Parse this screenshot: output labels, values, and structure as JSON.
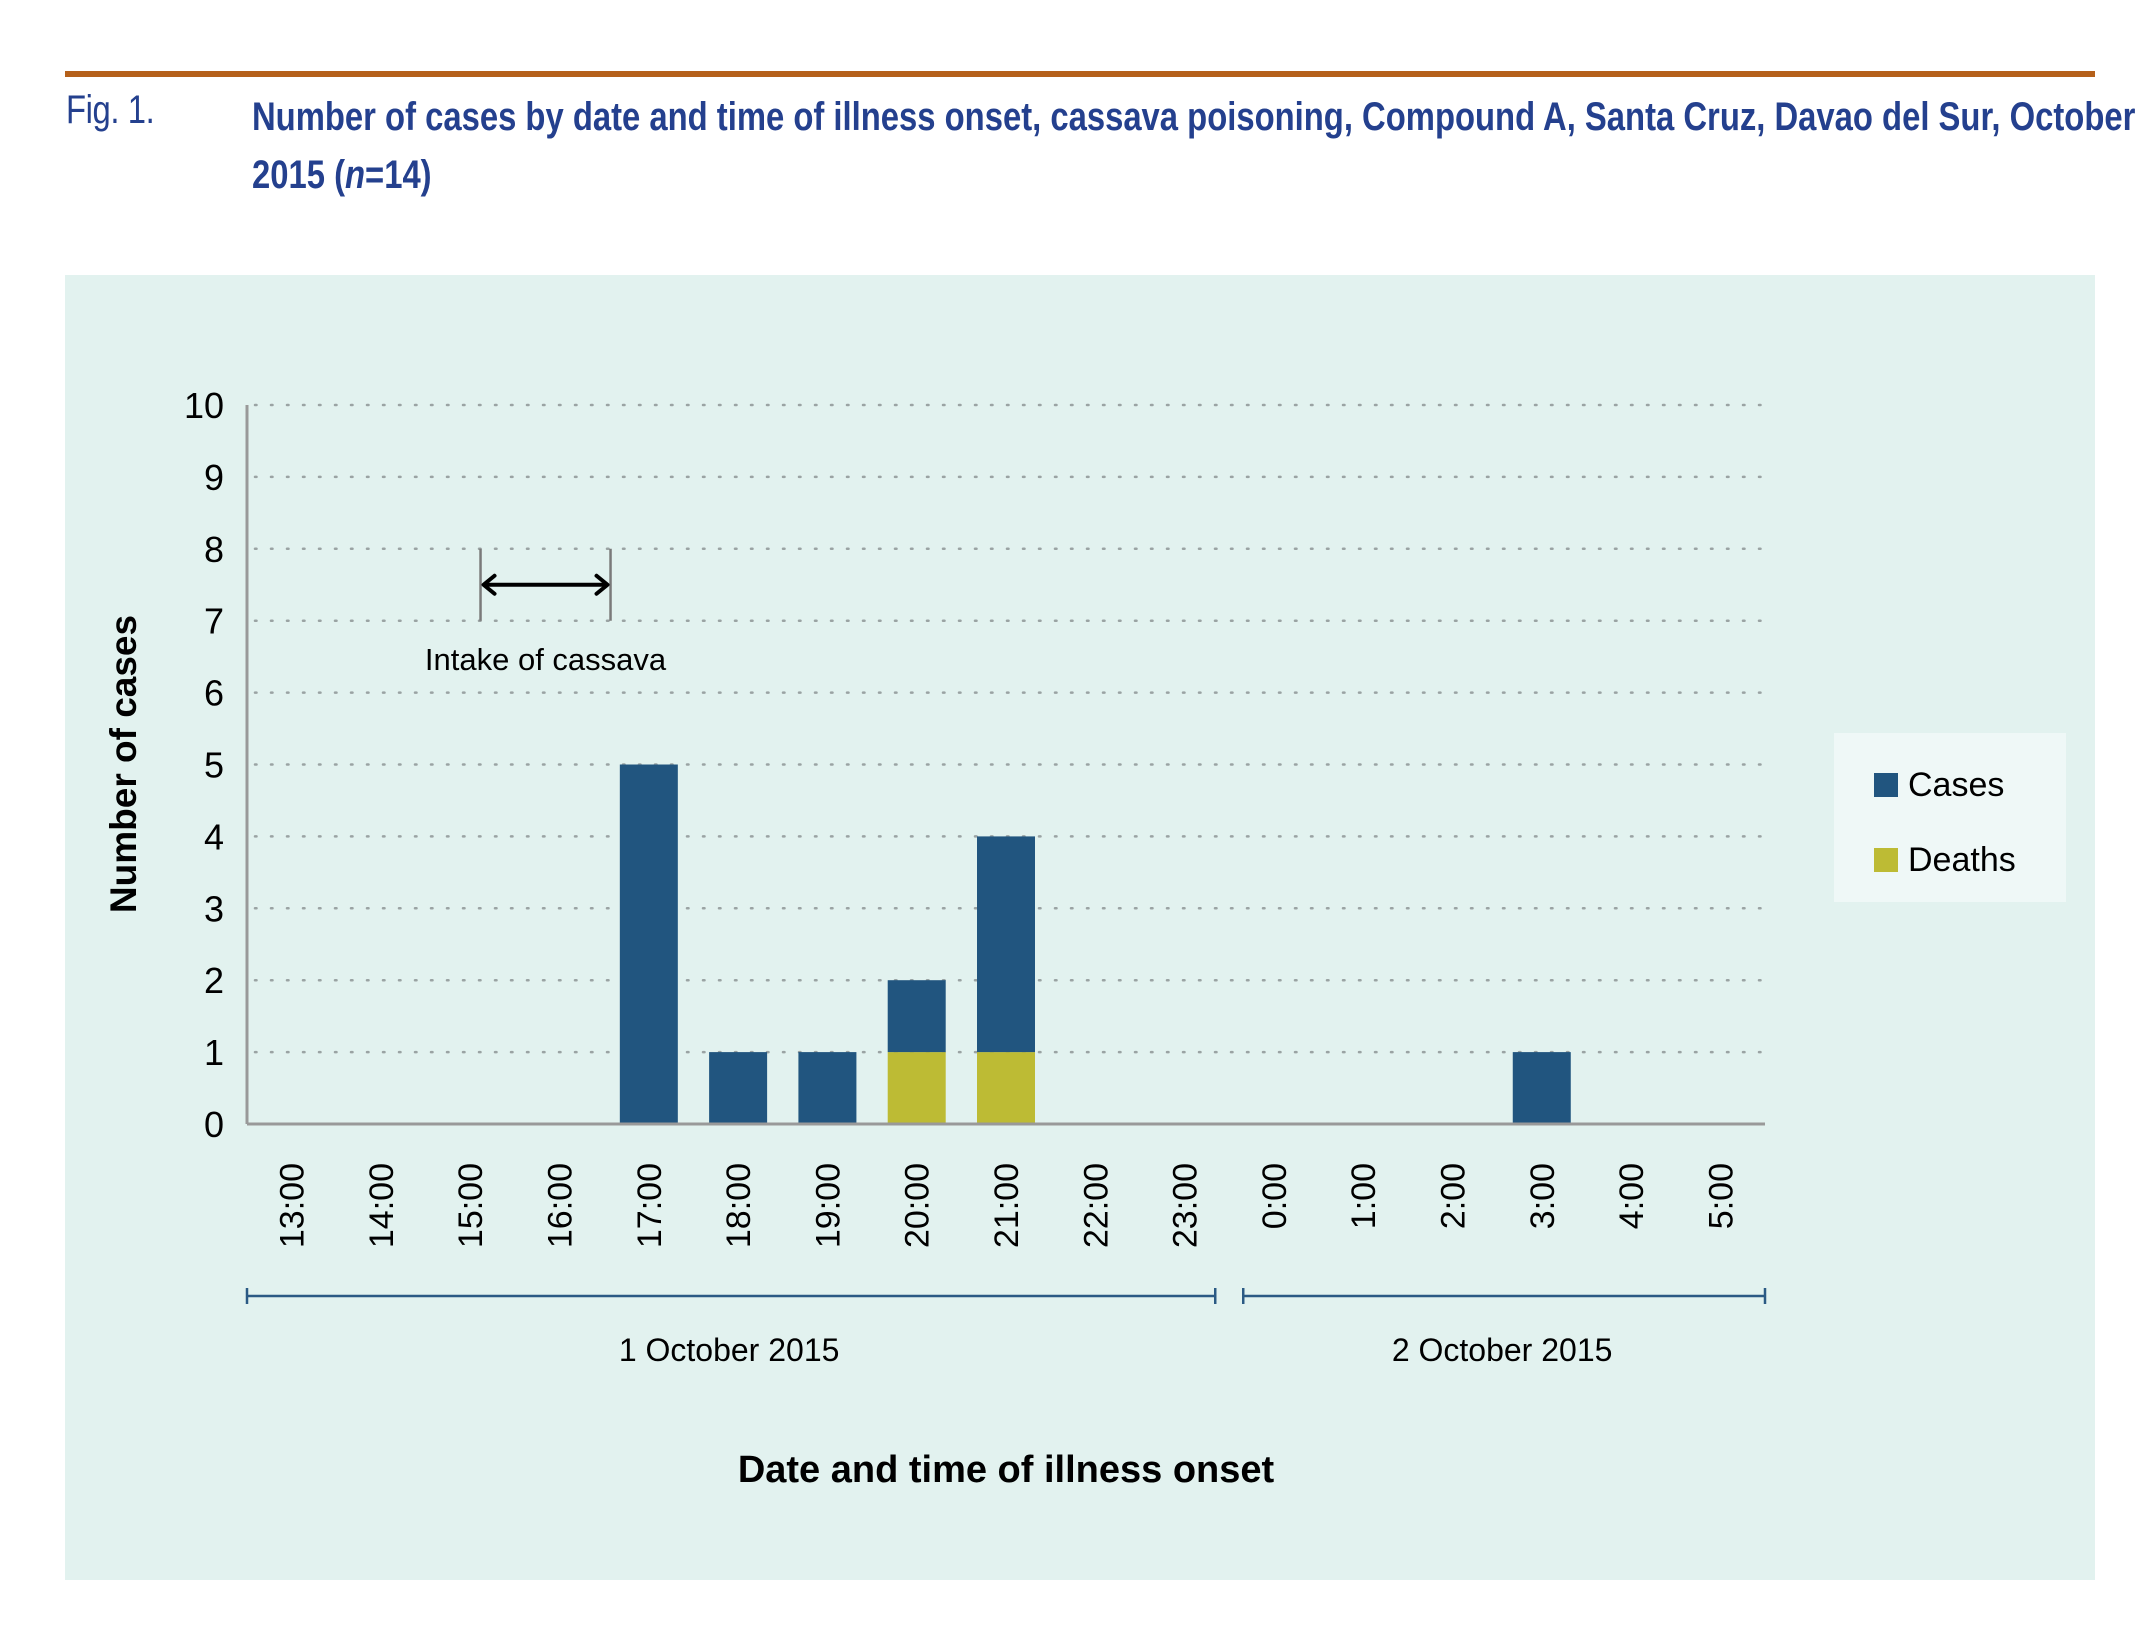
{
  "figure": {
    "label": "Fig. 1.",
    "title_main": "Number of cases by date and time of illness onset, cassava poisoning, Compound A, Santa Cruz, Davao del Sur, October 2015 (",
    "title_n_var": "n",
    "title_n_rest": "=14)",
    "accent_color": "#b5601a",
    "title_color": "#24408e",
    "panel_color": "#e2f2ef"
  },
  "chart_data": {
    "type": "bar",
    "stacked": true,
    "title": "Number of cases by date and time of illness onset, cassava poisoning, Compound A, Santa Cruz, Davao del Sur, October 2015 (n=14)",
    "xlabel": "Date and time of illness onset",
    "ylabel": "Number of cases",
    "ylim": [
      0,
      10
    ],
    "yticks": [
      0,
      1,
      2,
      3,
      4,
      5,
      6,
      7,
      8,
      9,
      10
    ],
    "grid": "horizontal dotted",
    "categories": [
      "13:00",
      "14:00",
      "15:00",
      "16:00",
      "17:00",
      "18:00",
      "19:00",
      "20:00",
      "21:00",
      "22:00",
      "23:00",
      "0:00",
      "1:00",
      "2:00",
      "3:00",
      "4:00",
      "5:00"
    ],
    "series": [
      {
        "name": "Deaths",
        "color": "#bdbb34",
        "values": [
          0,
          0,
          0,
          0,
          0,
          0,
          0,
          1,
          1,
          0,
          0,
          0,
          0,
          0,
          0,
          0,
          0
        ]
      },
      {
        "name": "Cases",
        "color": "#21557f",
        "values": [
          0,
          0,
          0,
          0,
          5,
          1,
          1,
          1,
          3,
          0,
          0,
          0,
          0,
          0,
          1,
          0,
          0
        ]
      }
    ],
    "totals": [
      0,
      0,
      0,
      0,
      5,
      1,
      1,
      2,
      4,
      0,
      0,
      0,
      0,
      0,
      1,
      0,
      0
    ],
    "date_groups": [
      {
        "label": "1 October 2015",
        "from": "13:00",
        "to": "23:00"
      },
      {
        "label": "2 October 2015",
        "from": "0:00",
        "to": "5:00"
      }
    ],
    "annotation": {
      "label": "Intake of cassava",
      "from_category": "16:00",
      "to_category": "17:00",
      "y_range": [
        7,
        8
      ]
    },
    "legend": {
      "position": "right",
      "entries": [
        {
          "name": "Cases",
          "color": "#21557f"
        },
        {
          "name": "Deaths",
          "color": "#bdbb34"
        }
      ]
    }
  }
}
